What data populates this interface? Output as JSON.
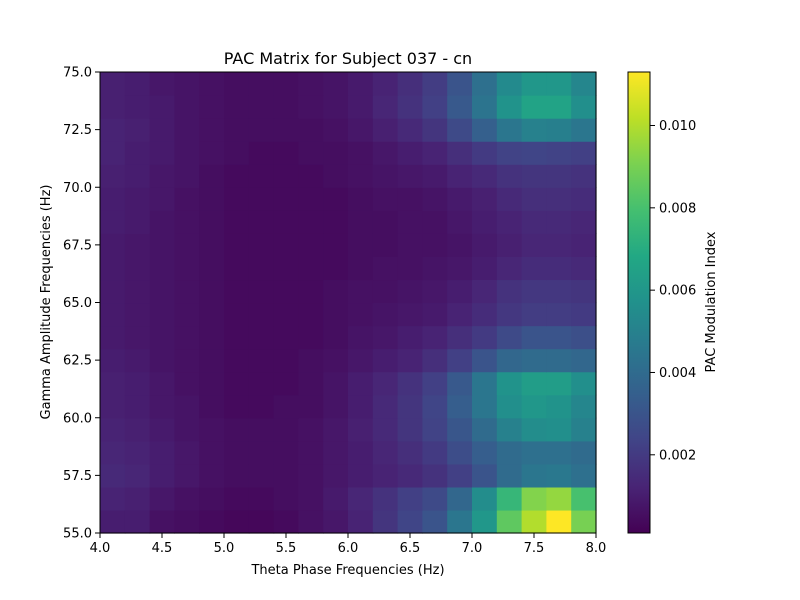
{
  "chart_data": {
    "type": "heatmap",
    "title": "PAC Matrix for Subject 037 - cn",
    "xlabel": "Theta Phase Frequencies (Hz)",
    "ylabel": "Gamma Amplitude Frequencies (Hz)",
    "xlim": [
      4.0,
      8.0
    ],
    "ylim": [
      55.0,
      75.0
    ],
    "x_ticks": [
      "4.0",
      "4.5",
      "5.0",
      "5.5",
      "6.0",
      "6.5",
      "7.0",
      "7.5",
      "8.0"
    ],
    "y_ticks": [
      "55.0",
      "57.5",
      "60.0",
      "62.5",
      "65.0",
      "67.5",
      "70.0",
      "72.5",
      "75.0"
    ],
    "colorbar": {
      "label": "PAC Modulation Index",
      "min": 0.0001,
      "max": 0.0113,
      "ticks": [
        "0.002",
        "0.004",
        "0.006",
        "0.008",
        "0.010"
      ],
      "colormap": "viridis"
    },
    "x_centers": [
      4.1,
      4.3,
      4.5,
      4.7,
      4.9,
      5.1,
      5.3,
      5.5,
      5.7,
      5.9,
      6.1,
      6.3,
      6.5,
      6.7,
      6.9,
      7.1,
      7.3,
      7.5,
      7.7,
      7.9
    ],
    "y_centers": [
      55.5,
      56.5,
      57.5,
      58.5,
      59.5,
      60.5,
      61.5,
      62.5,
      63.5,
      64.5,
      65.5,
      66.5,
      67.5,
      68.5,
      69.5,
      70.5,
      71.5,
      72.5,
      73.5,
      74.5
    ],
    "values": [
      [
        0.001,
        0.001,
        0.0006,
        0.0005,
        0.0004,
        0.0003,
        0.0003,
        0.0004,
        0.0006,
        0.0008,
        0.0012,
        0.0018,
        0.0024,
        0.003,
        0.0045,
        0.006,
        0.0085,
        0.01,
        0.0113,
        0.009
      ],
      [
        0.0012,
        0.0011,
        0.0008,
        0.0006,
        0.0005,
        0.0004,
        0.0004,
        0.0005,
        0.0006,
        0.0009,
        0.0013,
        0.0017,
        0.0022,
        0.0026,
        0.0038,
        0.0055,
        0.0075,
        0.0092,
        0.0095,
        0.008
      ],
      [
        0.0014,
        0.0013,
        0.001,
        0.0008,
        0.0006,
        0.0005,
        0.0005,
        0.0005,
        0.0006,
        0.0008,
        0.001,
        0.0012,
        0.0014,
        0.0017,
        0.0022,
        0.003,
        0.004,
        0.0045,
        0.0046,
        0.0042
      ],
      [
        0.0013,
        0.0012,
        0.001,
        0.0008,
        0.0006,
        0.0005,
        0.0005,
        0.0005,
        0.0006,
        0.0008,
        0.001,
        0.0013,
        0.0016,
        0.002,
        0.0027,
        0.0034,
        0.004,
        0.0042,
        0.0042,
        0.004
      ],
      [
        0.0012,
        0.0011,
        0.0009,
        0.0007,
        0.0006,
        0.0005,
        0.0005,
        0.0005,
        0.0006,
        0.0008,
        0.0011,
        0.0014,
        0.0018,
        0.0023,
        0.0031,
        0.004,
        0.005,
        0.0055,
        0.0056,
        0.005
      ],
      [
        0.0011,
        0.001,
        0.0008,
        0.0007,
        0.0005,
        0.0004,
        0.0004,
        0.0005,
        0.0005,
        0.0007,
        0.001,
        0.0014,
        0.0018,
        0.0024,
        0.0034,
        0.0045,
        0.0056,
        0.006,
        0.0058,
        0.0052
      ],
      [
        0.0011,
        0.001,
        0.0008,
        0.0006,
        0.0005,
        0.0004,
        0.0004,
        0.0004,
        0.0005,
        0.0007,
        0.001,
        0.0013,
        0.0017,
        0.0022,
        0.0032,
        0.0045,
        0.0058,
        0.0063,
        0.0063,
        0.0056
      ],
      [
        0.001,
        0.0009,
        0.0007,
        0.0006,
        0.0005,
        0.0004,
        0.0004,
        0.0004,
        0.0005,
        0.0006,
        0.0008,
        0.001,
        0.0012,
        0.0016,
        0.0022,
        0.003,
        0.0038,
        0.004,
        0.004,
        0.0038
      ],
      [
        0.0009,
        0.0008,
        0.0007,
        0.0006,
        0.0005,
        0.0004,
        0.0004,
        0.0004,
        0.0004,
        0.0005,
        0.0007,
        0.0008,
        0.001,
        0.0012,
        0.0016,
        0.002,
        0.0026,
        0.003,
        0.003,
        0.0028
      ],
      [
        0.0009,
        0.0008,
        0.0007,
        0.0006,
        0.0005,
        0.0004,
        0.0004,
        0.0004,
        0.0004,
        0.0005,
        0.0006,
        0.0007,
        0.0008,
        0.0009,
        0.0012,
        0.0015,
        0.0019,
        0.0021,
        0.0021,
        0.002
      ],
      [
        0.0009,
        0.0008,
        0.0007,
        0.0006,
        0.0005,
        0.0004,
        0.0004,
        0.0004,
        0.0004,
        0.0005,
        0.0006,
        0.0006,
        0.0007,
        0.0008,
        0.001,
        0.0013,
        0.0017,
        0.0019,
        0.0019,
        0.0018
      ],
      [
        0.0009,
        0.0008,
        0.0007,
        0.0006,
        0.0005,
        0.0004,
        0.0004,
        0.0004,
        0.0004,
        0.0004,
        0.0005,
        0.0006,
        0.0006,
        0.0007,
        0.0008,
        0.001,
        0.0013,
        0.0015,
        0.0015,
        0.0014
      ],
      [
        0.0009,
        0.0008,
        0.0007,
        0.0006,
        0.0005,
        0.0004,
        0.0004,
        0.0004,
        0.0004,
        0.0004,
        0.0005,
        0.0005,
        0.0006,
        0.0006,
        0.0007,
        0.0009,
        0.0011,
        0.0013,
        0.0013,
        0.0012
      ],
      [
        0.001,
        0.0009,
        0.0007,
        0.0006,
        0.0005,
        0.0004,
        0.0004,
        0.0004,
        0.0004,
        0.0004,
        0.0005,
        0.0005,
        0.0006,
        0.0006,
        0.0008,
        0.001,
        0.0012,
        0.0014,
        0.0014,
        0.0013
      ],
      [
        0.001,
        0.0009,
        0.0008,
        0.0006,
        0.0005,
        0.0004,
        0.0004,
        0.0004,
        0.0004,
        0.0004,
        0.0005,
        0.0006,
        0.0006,
        0.0007,
        0.0009,
        0.0011,
        0.0014,
        0.0016,
        0.0016,
        0.0015
      ],
      [
        0.0011,
        0.001,
        0.0008,
        0.0007,
        0.0005,
        0.0004,
        0.0004,
        0.0004,
        0.0004,
        0.0005,
        0.0006,
        0.0007,
        0.0008,
        0.0009,
        0.0012,
        0.0014,
        0.0017,
        0.0018,
        0.0018,
        0.0017
      ],
      [
        0.0012,
        0.001,
        0.0009,
        0.0007,
        0.0006,
        0.0005,
        0.0004,
        0.0004,
        0.0005,
        0.0005,
        0.0006,
        0.0008,
        0.001,
        0.0012,
        0.0016,
        0.002,
        0.0023,
        0.0024,
        0.0023,
        0.0022
      ],
      [
        0.0012,
        0.0011,
        0.0009,
        0.0007,
        0.0006,
        0.0005,
        0.0005,
        0.0005,
        0.0005,
        0.0006,
        0.0008,
        0.0011,
        0.0014,
        0.0018,
        0.0026,
        0.0035,
        0.0045,
        0.005,
        0.0049,
        0.0045
      ],
      [
        0.0011,
        0.001,
        0.0009,
        0.0007,
        0.0006,
        0.0005,
        0.0005,
        0.0005,
        0.0006,
        0.0007,
        0.0009,
        0.0013,
        0.0017,
        0.0022,
        0.0032,
        0.0044,
        0.0058,
        0.0066,
        0.0066,
        0.0056
      ],
      [
        0.0011,
        0.001,
        0.0008,
        0.0007,
        0.0006,
        0.0005,
        0.0005,
        0.0005,
        0.0006,
        0.0007,
        0.0009,
        0.0012,
        0.0016,
        0.0021,
        0.003,
        0.0042,
        0.0054,
        0.006,
        0.006,
        0.0052
      ]
    ]
  }
}
